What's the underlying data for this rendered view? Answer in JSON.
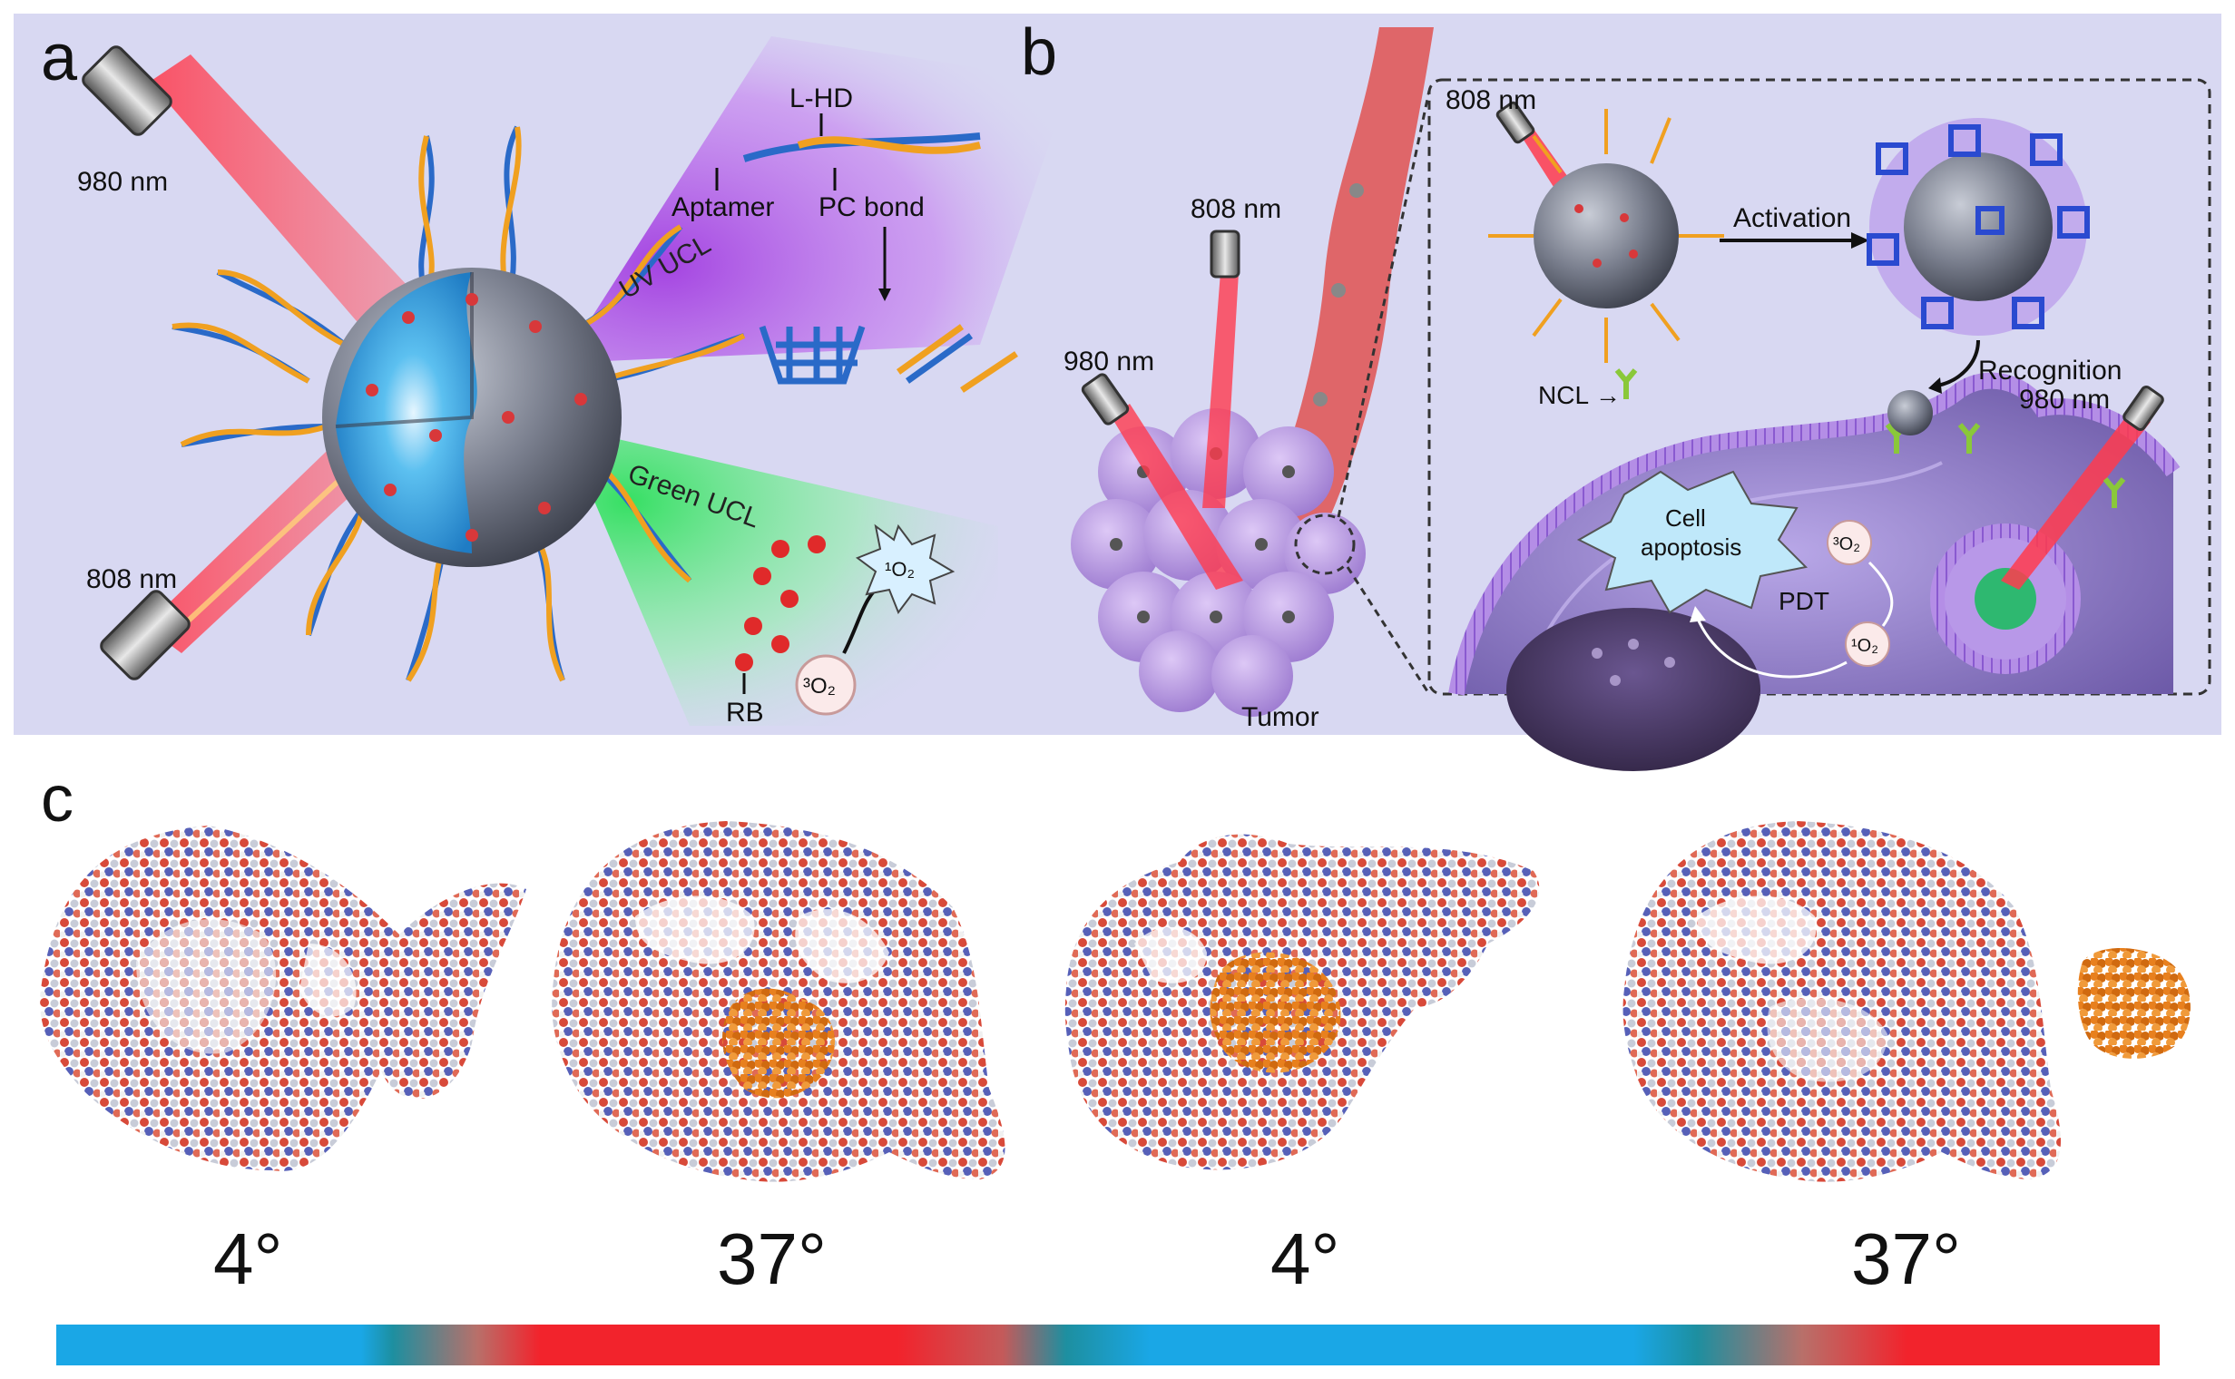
{
  "panel_a": {
    "letter": "a",
    "laser_980": "980 nm",
    "laser_808": "808 nm",
    "lhd": "L-HD",
    "aptamer": "Aptamer",
    "pc_bond": "PC bond",
    "uv_ucl": "UV UCL",
    "green_ucl": "Green UCL",
    "rb": "RB",
    "triplet_o2": "³O₂",
    "singlet_o2": "¹O₂"
  },
  "panel_b": {
    "letter": "b",
    "laser_808_left": "808 nm",
    "laser_980_left": "980 nm",
    "tumor": "Tumor",
    "laser_808_inset": "808 nm",
    "activation": "Activation",
    "recognition": "Recognition",
    "ncl": "NCL",
    "laser_980_inset": "980 nm",
    "cell_apoptosis_line1": "Cell",
    "cell_apoptosis_line2": "apoptosis",
    "pdt": "PDT",
    "triplet_o2": "³O₂",
    "singlet_o2": "¹O₂"
  },
  "panel_c": {
    "letter": "c",
    "temps": [
      "4°",
      "37°",
      "4°",
      "37°"
    ]
  },
  "colors": {
    "panel_bg": "#d8d8f2",
    "shell": "#6b7080",
    "core": "#3aa0e0",
    "laser": "#f23c4a",
    "uv_glow": "#b44be0",
    "green_glow": "#3ee06a",
    "cargo": "#e8801e",
    "scale_blue": "#1aa7e6",
    "scale_red": "#f2232c"
  }
}
